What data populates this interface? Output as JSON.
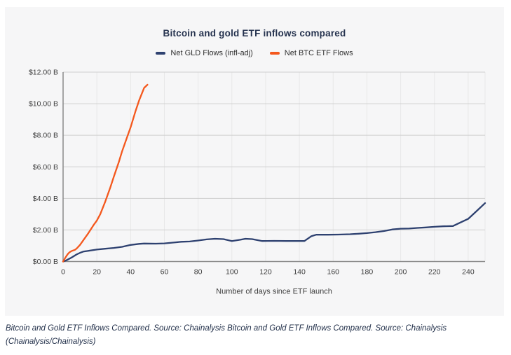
{
  "chart_data": {
    "type": "line",
    "title": "Bitcoin and gold ETF inflows compared",
    "xlabel": "Number of days since ETF launch",
    "ylabel": "",
    "xlim": [
      0,
      250
    ],
    "ylim": [
      0,
      12
    ],
    "grid": true,
    "legend_position": "top",
    "x_ticks": [
      0,
      20,
      40,
      60,
      80,
      100,
      120,
      140,
      160,
      180,
      200,
      220,
      240
    ],
    "y_ticks": [
      {
        "value": 0,
        "label": "$0.00 B"
      },
      {
        "value": 2,
        "label": "$2.00 B"
      },
      {
        "value": 4,
        "label": "$4.00 B"
      },
      {
        "value": 6,
        "label": "$6.00 B"
      },
      {
        "value": 8,
        "label": "$8.00 B"
      },
      {
        "value": 10,
        "label": "$10.00 B"
      },
      {
        "value": 12,
        "label": "$12.00 B"
      }
    ],
    "series": [
      {
        "name": "Net GLD Flows (infl-adj)",
        "color": "#2e4170",
        "points": [
          [
            0,
            0
          ],
          [
            2,
            0.08
          ],
          [
            5,
            0.25
          ],
          [
            8,
            0.45
          ],
          [
            10,
            0.55
          ],
          [
            12,
            0.63
          ],
          [
            15,
            0.68
          ],
          [
            20,
            0.76
          ],
          [
            25,
            0.81
          ],
          [
            30,
            0.86
          ],
          [
            35,
            0.93
          ],
          [
            40,
            1.05
          ],
          [
            45,
            1.12
          ],
          [
            48,
            1.14
          ],
          [
            55,
            1.13
          ],
          [
            60,
            1.15
          ],
          [
            65,
            1.2
          ],
          [
            70,
            1.25
          ],
          [
            75,
            1.27
          ],
          [
            80,
            1.33
          ],
          [
            85,
            1.4
          ],
          [
            90,
            1.44
          ],
          [
            95,
            1.42
          ],
          [
            100,
            1.3
          ],
          [
            105,
            1.38
          ],
          [
            108,
            1.44
          ],
          [
            112,
            1.42
          ],
          [
            118,
            1.3
          ],
          [
            125,
            1.31
          ],
          [
            132,
            1.3
          ],
          [
            143,
            1.3
          ],
          [
            147,
            1.6
          ],
          [
            150,
            1.7
          ],
          [
            157,
            1.7
          ],
          [
            163,
            1.71
          ],
          [
            170,
            1.73
          ],
          [
            175,
            1.76
          ],
          [
            180,
            1.8
          ],
          [
            185,
            1.86
          ],
          [
            190,
            1.93
          ],
          [
            195,
            2.03
          ],
          [
            200,
            2.08
          ],
          [
            205,
            2.09
          ],
          [
            210,
            2.13
          ],
          [
            215,
            2.16
          ],
          [
            220,
            2.2
          ],
          [
            225,
            2.23
          ],
          [
            231,
            2.25
          ],
          [
            236,
            2.5
          ],
          [
            240,
            2.7
          ],
          [
            245,
            3.2
          ],
          [
            250,
            3.7
          ]
        ]
      },
      {
        "name": "Net BTC ETF Flows",
        "color": "#f4581d",
        "points": [
          [
            0,
            0
          ],
          [
            1,
            0.18
          ],
          [
            2,
            0.35
          ],
          [
            3,
            0.5
          ],
          [
            4,
            0.6
          ],
          [
            5,
            0.66
          ],
          [
            6,
            0.7
          ],
          [
            7,
            0.74
          ],
          [
            8,
            0.82
          ],
          [
            10,
            1.05
          ],
          [
            12,
            1.35
          ],
          [
            15,
            1.8
          ],
          [
            18,
            2.3
          ],
          [
            20,
            2.6
          ],
          [
            22,
            3.0
          ],
          [
            25,
            3.8
          ],
          [
            28,
            4.7
          ],
          [
            30,
            5.35
          ],
          [
            33,
            6.3
          ],
          [
            35,
            7.0
          ],
          [
            38,
            7.9
          ],
          [
            40,
            8.5
          ],
          [
            43,
            9.55
          ],
          [
            45,
            10.2
          ],
          [
            48,
            11.0
          ],
          [
            50,
            11.2
          ]
        ]
      }
    ]
  },
  "caption": {
    "text": "Bitcoin and Gold ETF Inflows Compared. Source: Chainalysis Bitcoin and Gold ETF Inflows Compared. Source: Chainalysis (Chainalysis/Chainalysis)"
  },
  "colors": {
    "card_background": "#f6f6f7",
    "title": "#26334f",
    "gld_line": "#2e4170",
    "btc_line": "#f4581d",
    "gridline_h": "#cfcfcf",
    "gridline_v": "#e8e8e8",
    "axis": "#8a8a8a",
    "tick_label": "#3d3d3d",
    "caption": "#22304a"
  }
}
